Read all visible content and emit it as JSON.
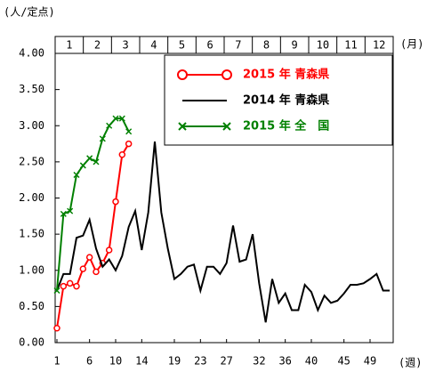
{
  "chart_data": {
    "type": "line",
    "y_label": "(人/定点)",
    "month_label": "(月)",
    "x_label": "(週)",
    "months": [
      "1",
      "2",
      "3",
      "4",
      "5",
      "6",
      "7",
      "8",
      "9",
      "10",
      "11",
      "12"
    ],
    "x": [
      1,
      2,
      3,
      4,
      5,
      6,
      7,
      8,
      9,
      10,
      11,
      12,
      13,
      14,
      15,
      16,
      17,
      18,
      19,
      20,
      21,
      22,
      23,
      24,
      25,
      26,
      27,
      28,
      29,
      30,
      31,
      32,
      33,
      34,
      35,
      36,
      37,
      38,
      39,
      40,
      41,
      42,
      43,
      44,
      45,
      46,
      47,
      48,
      49,
      50,
      51,
      52
    ],
    "xlim": [
      1,
      52
    ],
    "xticks": [
      1,
      6,
      10,
      14,
      19,
      23,
      27,
      32,
      36,
      40,
      45,
      49
    ],
    "ylim": [
      0,
      4
    ],
    "yticks": [
      {
        "value": 0,
        "label": "0.00"
      },
      {
        "value": 0.5,
        "label": "0.50"
      },
      {
        "value": 1,
        "label": "1.00"
      },
      {
        "value": 1.5,
        "label": "1.50"
      },
      {
        "value": 2,
        "label": "2.00"
      },
      {
        "value": 2.5,
        "label": "2.50"
      },
      {
        "value": 3,
        "label": "3.00"
      },
      {
        "value": 3.5,
        "label": "3.50"
      },
      {
        "value": 4,
        "label": "4.00"
      }
    ],
    "legend": "upper right",
    "series": [
      {
        "name": "2015 年 青森県",
        "color": "#ff0000",
        "marker": "circle",
        "values": [
          0.2,
          0.78,
          0.82,
          0.78,
          1.02,
          1.18,
          0.98,
          1.1,
          1.28,
          1.95,
          2.6,
          2.75,
          null,
          null,
          null,
          null,
          null,
          null,
          null,
          null,
          null,
          null,
          null,
          null,
          null,
          null,
          null,
          null,
          null,
          null,
          null,
          null,
          null,
          null,
          null,
          null,
          null,
          null,
          null,
          null,
          null,
          null,
          null,
          null,
          null,
          null,
          null,
          null,
          null,
          null,
          null,
          null
        ]
      },
      {
        "name": "2014 年 青森県",
        "color": "#000000",
        "marker": "none",
        "values": [
          0.72,
          0.95,
          0.95,
          1.45,
          1.48,
          1.7,
          1.3,
          1.05,
          1.15,
          1.0,
          1.2,
          1.6,
          1.82,
          1.28,
          1.8,
          2.78,
          1.8,
          1.3,
          0.88,
          0.95,
          1.05,
          1.08,
          0.72,
          1.05,
          1.05,
          0.95,
          1.1,
          1.62,
          1.12,
          1.15,
          1.5,
          0.82,
          0.28,
          0.88,
          0.55,
          0.68,
          0.45,
          0.45,
          0.8,
          0.7,
          0.45,
          0.65,
          0.55,
          0.58,
          0.68,
          0.8,
          0.8,
          0.82,
          0.88,
          0.95,
          0.72,
          0.72
        ]
      },
      {
        "name": "2015 年 全　国",
        "color": "#008000",
        "marker": "x",
        "values": [
          0.72,
          1.78,
          1.82,
          2.32,
          2.45,
          2.55,
          2.5,
          2.82,
          3.0,
          3.1,
          3.1,
          2.92,
          null,
          null,
          null,
          null,
          null,
          null,
          null,
          null,
          null,
          null,
          null,
          null,
          null,
          null,
          null,
          null,
          null,
          null,
          null,
          null,
          null,
          null,
          null,
          null,
          null,
          null,
          null,
          null,
          null,
          null,
          null,
          null,
          null,
          null,
          null,
          null,
          null,
          null,
          null,
          null
        ]
      }
    ]
  }
}
